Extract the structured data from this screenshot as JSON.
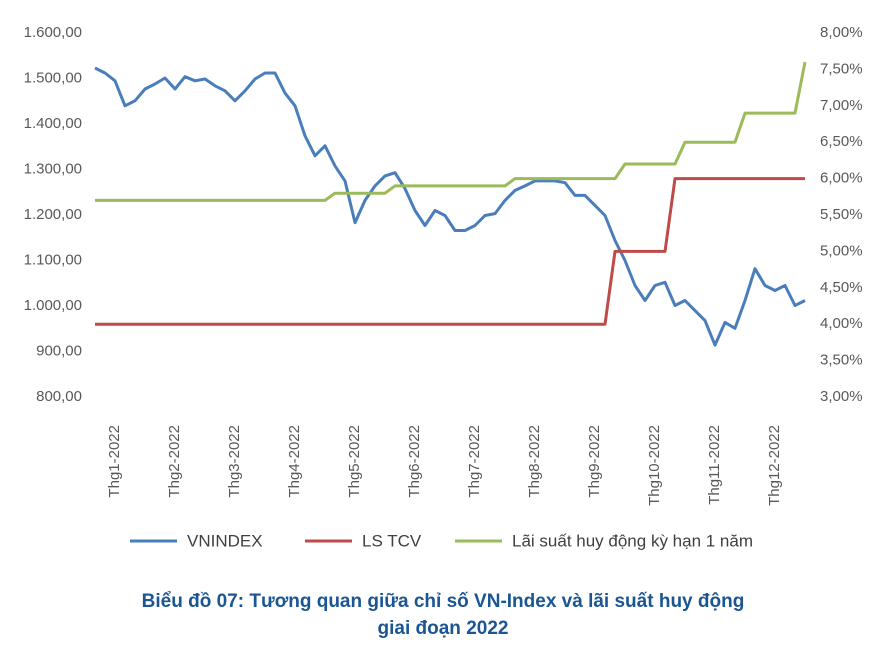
{
  "chart_data": {
    "type": "line",
    "title": "Biểu đồ 07: Tương quan giữa chỉ số VN-Index và lãi suất huy động giai đoạn 2022",
    "categories": [
      null,
      null,
      "Thg1-2022",
      null,
      null,
      null,
      null,
      null,
      "Thg2-2022",
      null,
      null,
      null,
      null,
      null,
      "Thg3-2022",
      null,
      null,
      null,
      null,
      null,
      "Thg4-2022",
      null,
      null,
      null,
      null,
      null,
      "Thg5-2022",
      null,
      null,
      null,
      null,
      null,
      "Thg6-2022",
      null,
      null,
      null,
      null,
      null,
      "Thg7-2022",
      null,
      null,
      null,
      null,
      null,
      "Thg8-2022",
      null,
      null,
      null,
      null,
      null,
      "Thg9-2022",
      null,
      null,
      null,
      null,
      null,
      "Thg10-2022",
      null,
      null,
      null,
      null,
      null,
      "Thg11-2022",
      null,
      null,
      null,
      null,
      null,
      "Thg12-2022",
      null,
      null,
      null
    ],
    "series": [
      {
        "name": "VNINDEX",
        "color": "#4a7ebb",
        "axis": "y",
        "values": [
          1523,
          1512,
          1495,
          1440,
          1451,
          1477,
          1488,
          1501,
          1477,
          1504,
          1495,
          1499,
          1484,
          1473,
          1451,
          1473,
          1499,
          1512,
          1512,
          1468,
          1440,
          1374,
          1330,
          1352,
          1308,
          1275,
          1183,
          1232,
          1264,
          1286,
          1293,
          1258,
          1210,
          1177,
          1210,
          1199,
          1166,
          1166,
          1177,
          1199,
          1203,
          1232,
          1254,
          1264,
          1275,
          1275,
          1275,
          1271,
          1243,
          1243,
          1221,
          1199,
          1144,
          1100,
          1045,
          1012,
          1045,
          1052,
          1001,
          1012,
          990,
          968,
          914,
          964,
          951,
          1012,
          1082,
          1045,
          1034,
          1045,
          1001,
          1012
        ]
      },
      {
        "name": "LS TCV",
        "color": "#be4b48",
        "axis": "y2",
        "values": [
          4,
          4,
          4,
          4,
          4,
          4,
          4,
          4,
          4,
          4,
          4,
          4,
          4,
          4,
          4,
          4,
          4,
          4,
          4,
          4,
          4,
          4,
          4,
          4,
          4,
          4,
          4,
          4,
          4,
          4,
          4,
          4,
          4,
          4,
          4,
          4,
          4,
          4,
          4,
          4,
          4,
          4,
          4,
          4,
          4,
          4,
          4,
          4,
          4,
          4,
          4,
          4,
          5,
          5,
          5,
          5,
          5,
          5,
          6,
          6,
          6,
          6,
          6,
          6,
          6,
          6,
          6,
          6,
          6,
          6,
          6,
          6
        ]
      },
      {
        "name": "Lãi suất huy động kỳ hạn 1 năm",
        "color": "#9bbb59",
        "axis": "y2",
        "values": [
          5.7,
          5.7,
          5.7,
          5.7,
          5.7,
          5.7,
          5.7,
          5.7,
          5.7,
          5.7,
          5.7,
          5.7,
          5.7,
          5.7,
          5.7,
          5.7,
          5.7,
          5.7,
          5.7,
          5.7,
          5.7,
          5.7,
          5.7,
          5.7,
          5.8,
          5.8,
          5.8,
          5.8,
          5.8,
          5.8,
          5.9,
          5.9,
          5.9,
          5.9,
          5.9,
          5.9,
          5.9,
          5.9,
          5.9,
          5.9,
          5.9,
          5.9,
          6.0,
          6.0,
          6.0,
          6.0,
          6.0,
          6.0,
          6.0,
          6.0,
          6.0,
          6.0,
          6.0,
          6.2,
          6.2,
          6.2,
          6.2,
          6.2,
          6.2,
          6.5,
          6.5,
          6.5,
          6.5,
          6.5,
          6.5,
          6.9,
          6.9,
          6.9,
          6.9,
          6.9,
          6.9,
          7.6
        ]
      }
    ],
    "ylim": [
      800,
      1600
    ],
    "yticks": [
      {
        "value": 800,
        "label": "800,00"
      },
      {
        "value": 900,
        "label": "900,00"
      },
      {
        "value": 1000,
        "label": "1.000,00"
      },
      {
        "value": 1100,
        "label": "1.100,00"
      },
      {
        "value": 1200,
        "label": "1.200,00"
      },
      {
        "value": 1300,
        "label": "1.300,00"
      },
      {
        "value": 1400,
        "label": "1.400,00"
      },
      {
        "value": 1500,
        "label": "1.500,00"
      },
      {
        "value": 1600,
        "label": "1.600,00"
      }
    ],
    "y2lim": [
      3,
      8
    ],
    "y2ticks": [
      {
        "value": 3,
        "label": "3,00%"
      },
      {
        "value": 3.5,
        "label": "3,50%"
      },
      {
        "value": 4,
        "label": "4,00%"
      },
      {
        "value": 4.5,
        "label": "4,50%"
      },
      {
        "value": 5,
        "label": "5,00%"
      },
      {
        "value": 5.5,
        "label": "5,50%"
      },
      {
        "value": 6,
        "label": "6,00%"
      },
      {
        "value": 6.5,
        "label": "6,50%"
      },
      {
        "value": 7,
        "label": "7,00%"
      },
      {
        "value": 7.5,
        "label": "7,50%"
      },
      {
        "value": 8,
        "label": "8,00%"
      }
    ],
    "grid": false,
    "legend": "bottom"
  }
}
